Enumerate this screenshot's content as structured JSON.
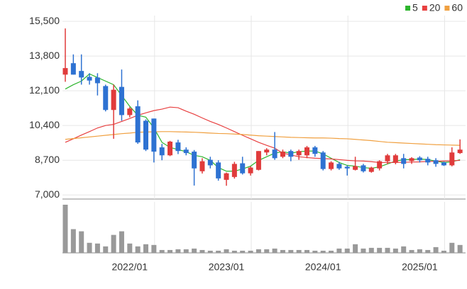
{
  "chart_data": {
    "type": "candlestick",
    "categories": [
      null,
      null,
      null,
      null,
      null,
      null,
      null,
      null,
      "2022/01",
      null,
      null,
      null,
      null,
      null,
      null,
      null,
      null,
      null,
      null,
      null,
      "2023/01",
      null,
      null,
      null,
      null,
      null,
      null,
      null,
      null,
      null,
      null,
      null,
      "2024/01",
      null,
      null,
      null,
      null,
      null,
      null,
      null,
      null,
      null,
      null,
      null,
      "2025/01",
      null,
      null,
      null,
      null,
      null
    ],
    "open": [
      12890,
      13450,
      13070,
      12780,
      12750,
      12330,
      11160,
      12290,
      10910,
      11340,
      10630,
      10740,
      9330,
      8940,
      9570,
      9220,
      9120,
      8160,
      8720,
      8590,
      7740,
      7880,
      8550,
      8060,
      8230,
      9080,
      9220,
      8870,
      9150,
      8940,
      8940,
      9330,
      9080,
      8270,
      8520,
      8380,
      8230,
      8450,
      8130,
      8300,
      8650,
      8590,
      8800,
      8660,
      8830,
      8770,
      8700,
      8590,
      8450,
      9050
    ],
    "high": [
      15150,
      13880,
      13880,
      12960,
      12960,
      12400,
      12400,
      13140,
      11300,
      11630,
      10700,
      10740,
      9500,
      9650,
      9700,
      9330,
      9200,
      8800,
      8870,
      8700,
      8100,
      8620,
      8870,
      8400,
      9150,
      9290,
      10080,
      9220,
      9220,
      9220,
      9400,
      9400,
      9150,
      8650,
      8620,
      8450,
      8870,
      8520,
      8380,
      8700,
      9010,
      9010,
      9010,
      8850,
      8900,
      8870,
      8800,
      8630,
      9330,
      9720
    ],
    "low": [
      12540,
      12890,
      12400,
      12400,
      11870,
      11090,
      9750,
      10630,
      10800,
      9500,
      9150,
      8590,
      8700,
      8900,
      9000,
      8940,
      7460,
      8050,
      8300,
      7700,
      7450,
      7800,
      8000,
      7950,
      8200,
      8940,
      8720,
      8800,
      8650,
      8720,
      8800,
      8870,
      8200,
      8200,
      8230,
      7950,
      8200,
      8100,
      8090,
      8200,
      8500,
      8500,
      8300,
      8520,
      8590,
      8450,
      8380,
      8420,
      8400,
      9010
    ],
    "close": [
      13210,
      12890,
      12750,
      12600,
      12470,
      11160,
      12150,
      10910,
      11230,
      9570,
      9220,
      9120,
      8940,
      9610,
      9150,
      9050,
      8300,
      8650,
      8450,
      7810,
      8060,
      8520,
      8060,
      8340,
      9150,
      9220,
      8800,
      9120,
      8870,
      9150,
      9330,
      9010,
      8270,
      8590,
      8300,
      8300,
      8410,
      8160,
      8340,
      8650,
      8940,
      8940,
      8520,
      8800,
      8700,
      8590,
      8520,
      8450,
      9080,
      9220
    ],
    "volume": [
      67,
      33,
      30,
      14,
      13,
      9,
      25,
      30,
      13,
      9,
      12,
      11,
      4,
      4,
      5,
      5,
      6,
      4,
      3,
      3,
      5,
      3,
      3,
      3,
      5,
      5,
      6,
      4,
      4,
      4,
      4,
      3,
      3,
      3,
      6,
      6,
      12,
      6,
      7,
      7,
      7,
      6,
      9,
      4,
      5,
      4,
      8,
      3,
      14,
      11
    ],
    "up_color": "#e03b3b",
    "down_color": "#2e72d2",
    "volume_color": "#999999",
    "series": [
      {
        "name": "5",
        "color": "#2db52d",
        "values": [
          12185,
          12396,
          12573,
          12925,
          12749,
          12573,
          12396,
          11868,
          11339,
          10900,
          10809,
          10280,
          9575,
          9328,
          9222,
          9116,
          8940,
          8869,
          8693,
          8340,
          8164,
          8164,
          8270,
          8411,
          8693,
          8869,
          9046,
          9116,
          9046,
          9116,
          9150,
          9150,
          9010,
          8799,
          8587,
          8446,
          8411,
          8340,
          8305,
          8376,
          8517,
          8658,
          8728,
          8728,
          8763,
          8728,
          8658,
          8587,
          8623,
          8728
        ]
      },
      {
        "name": "20",
        "color": "#e84040",
        "values": [
          9575,
          9750,
          9930,
          10100,
          10280,
          10400,
          10455,
          10600,
          10740,
          10900,
          11020,
          11130,
          11200,
          11300,
          11270,
          11100,
          10950,
          10770,
          10600,
          10450,
          10280,
          10100,
          9920,
          9750,
          9575,
          9430,
          9290,
          9046,
          8960,
          8869,
          8830,
          8799,
          8780,
          8763,
          8730,
          8693,
          8670,
          8658,
          8630,
          8587,
          8587,
          8587,
          8600,
          8610,
          8620,
          8640,
          8650,
          8660,
          8670,
          8693
        ]
      },
      {
        "name": "60",
        "color": "#f0a040",
        "values": [
          9720,
          9760,
          9800,
          9840,
          9880,
          9920,
          9960,
          10000,
          10030,
          10070,
          10080,
          10090,
          10100,
          10100,
          10090,
          10080,
          10070,
          10050,
          10030,
          10010,
          10000,
          9980,
          9960,
          9930,
          9900,
          9880,
          9860,
          9840,
          9820,
          9810,
          9800,
          9790,
          9790,
          9780,
          9760,
          9750,
          9720,
          9690,
          9660,
          9620,
          9580,
          9560,
          9540,
          9520,
          9500,
          9480,
          9460,
          9450,
          9440,
          9430
        ]
      }
    ],
    "ylim": [
      6800,
      15780
    ],
    "yticks": [
      {
        "value": 7000,
        "label": "7,000"
      },
      {
        "value": 8700,
        "label": "8,700"
      },
      {
        "value": 10400,
        "label": "10,400"
      },
      {
        "value": 12100,
        "label": "12,100"
      },
      {
        "value": 13800,
        "label": "13,800"
      },
      {
        "value": 15500,
        "label": "15,500"
      }
    ],
    "grid": true,
    "legend": "top-right"
  }
}
